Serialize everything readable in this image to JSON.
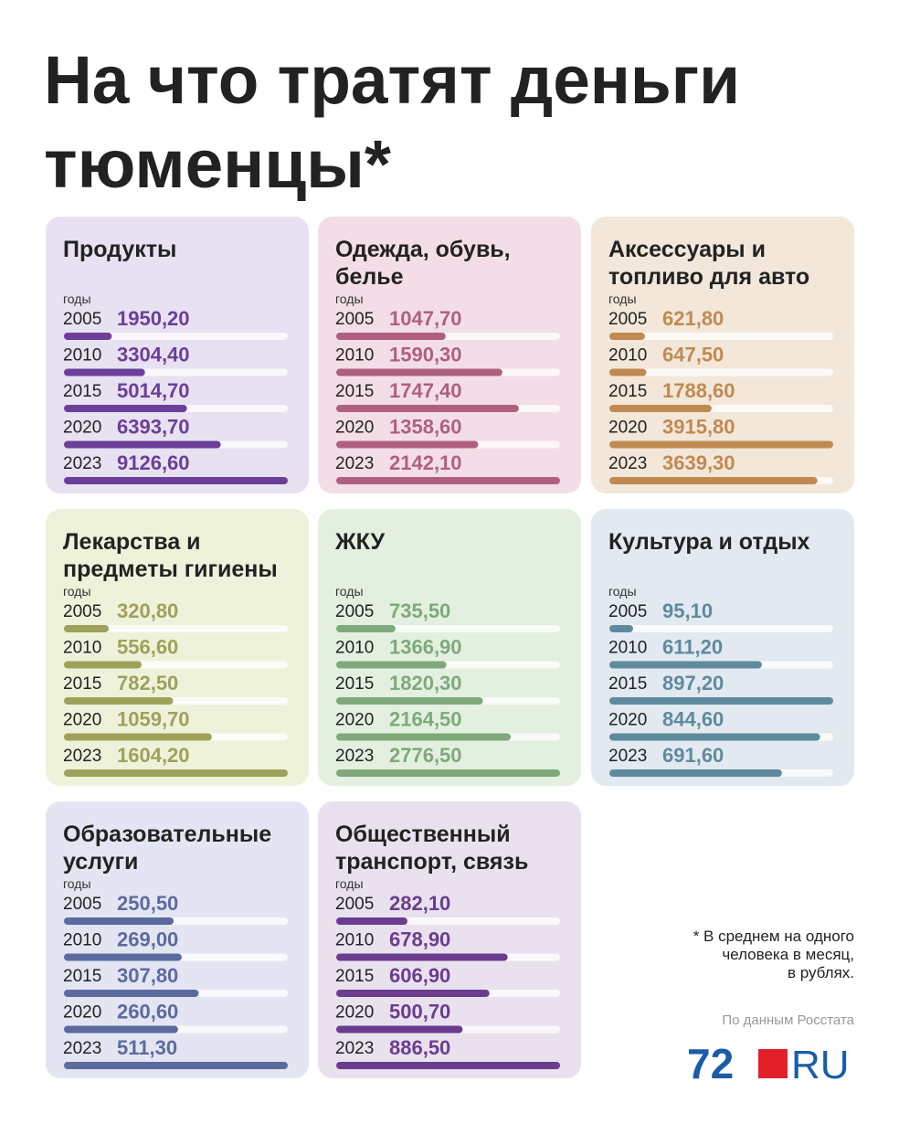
{
  "title": [
    "На что тратят деньги",
    "тюменцы*"
  ],
  "footnote": [
    "* В среднем на одного",
    "человека в месяц,",
    "в рублях."
  ],
  "source": "По данным Росстата",
  "logo": [
    "72",
    "RU"
  ],
  "chart_data": [
    {
      "type": "bar",
      "orientation": "horizontal",
      "title": [
        "Продукты"
      ],
      "axis_label": "годы",
      "categories": [
        "2005",
        "2010",
        "2015",
        "2020",
        "2023"
      ],
      "values": [
        1950.2,
        3304.4,
        5014.7,
        6393.7,
        9126.6
      ],
      "value_labels": [
        "1950,20",
        "3304,40",
        "5014,70",
        "6393,70",
        "9126,60"
      ],
      "xlim": [
        0,
        9126.6
      ],
      "color": "#6b3f99",
      "background": "#e8e1f2"
    },
    {
      "type": "bar",
      "orientation": "horizontal",
      "title": [
        "Одежда, обувь,",
        "белье"
      ],
      "axis_label": "годы",
      "categories": [
        "2005",
        "2010",
        "2015",
        "2020",
        "2023"
      ],
      "values": [
        1047.7,
        1590.3,
        1747.4,
        1358.6,
        2142.1
      ],
      "value_labels": [
        "1047,70",
        "1590,30",
        "1747,40",
        "1358,60",
        "2142,10"
      ],
      "xlim": [
        0,
        2142.1
      ],
      "color": "#b0607f",
      "background": "#f3dee7"
    },
    {
      "type": "bar",
      "orientation": "horizontal",
      "title": [
        "Аксессуары и",
        "топливо для авто"
      ],
      "axis_label": "годы",
      "categories": [
        "2005",
        "2010",
        "2015",
        "2020",
        "2023"
      ],
      "values": [
        621.8,
        647.5,
        1788.6,
        3915.8,
        3639.3
      ],
      "value_labels": [
        "621,80",
        "647,50",
        "1788,60",
        "3915,80",
        "3639,30"
      ],
      "xlim": [
        0,
        3915.8
      ],
      "color": "#c08a52",
      "background": "#f3e7d9"
    },
    {
      "type": "bar",
      "orientation": "horizontal",
      "title": [
        "Лекарства и",
        "предметы гигиены"
      ],
      "axis_label": "годы",
      "categories": [
        "2005",
        "2010",
        "2015",
        "2020",
        "2023"
      ],
      "values": [
        320.8,
        556.6,
        782.5,
        1059.7,
        1604.2
      ],
      "value_labels": [
        "320,80",
        "556,60",
        "782,50",
        "1059,70",
        "1604,20"
      ],
      "xlim": [
        0,
        1604.2
      ],
      "color": "#9ea15a",
      "background": "#eff2da"
    },
    {
      "type": "bar",
      "orientation": "horizontal",
      "title": [
        "ЖКУ"
      ],
      "axis_label": "годы",
      "categories": [
        "2005",
        "2010",
        "2015",
        "2020",
        "2023"
      ],
      "values": [
        735.5,
        1366.9,
        1820.3,
        2164.5,
        2776.5
      ],
      "value_labels": [
        "735,50",
        "1366,90",
        "1820,30",
        "2164,50",
        "2776,50"
      ],
      "xlim": [
        0,
        2776.5
      ],
      "color": "#7fa97c",
      "background": "#e3f0e0"
    },
    {
      "type": "bar",
      "orientation": "horizontal",
      "title": [
        "Культура и отдых"
      ],
      "axis_label": "годы",
      "categories": [
        "2005",
        "2010",
        "2015",
        "2020",
        "2023"
      ],
      "values": [
        95.1,
        611.2,
        897.2,
        844.6,
        691.6
      ],
      "value_labels": [
        "95,10",
        "611,20",
        "897,20",
        "844,60",
        "691,60"
      ],
      "xlim": [
        0,
        897.2
      ],
      "color": "#5f8a9d",
      "background": "#e2e9f0"
    },
    {
      "type": "bar",
      "orientation": "horizontal",
      "title": [
        "Образовательные",
        "услуги"
      ],
      "axis_label": "годы",
      "categories": [
        "2005",
        "2010",
        "2015",
        "2020",
        "2023"
      ],
      "values": [
        250.5,
        269.0,
        307.8,
        260.6,
        511.3
      ],
      "value_labels": [
        "250,50",
        "269,00",
        "307,80",
        "260,60",
        "511,30"
      ],
      "xlim": [
        0,
        511.3
      ],
      "color": "#5d6a9f",
      "background": "#e3e6f2"
    },
    {
      "type": "bar",
      "orientation": "horizontal",
      "title": [
        "Общественный",
        "транспорт, связь"
      ],
      "axis_label": "годы",
      "categories": [
        "2005",
        "2010",
        "2015",
        "2020",
        "2023"
      ],
      "values": [
        282.1,
        678.9,
        606.9,
        500.7,
        886.5
      ],
      "value_labels": [
        "282,10",
        "678,90",
        "606,90",
        "500,70",
        "886,50"
      ],
      "xlim": [
        0,
        886.5
      ],
      "color": "#6a3d8f",
      "background": "#eae1ef"
    }
  ]
}
